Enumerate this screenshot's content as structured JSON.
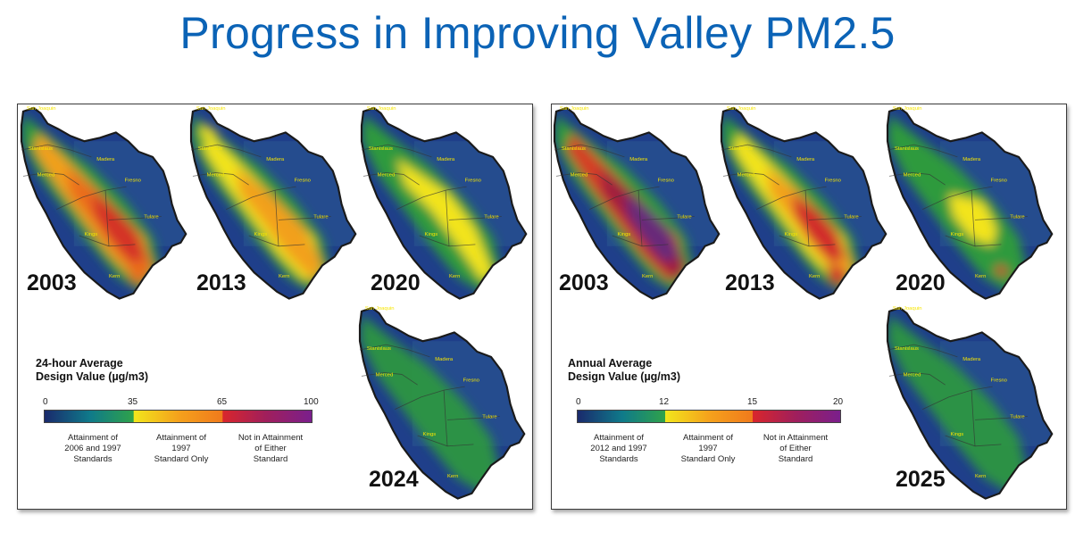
{
  "title": "Progress in Improving Valley PM2.5",
  "left_panel": {
    "years": [
      "2003",
      "2013",
      "2020",
      "2024"
    ],
    "legend": {
      "title_line1": "24-hour Average",
      "title_line2": "Design Value (µg/m3)",
      "ticks": [
        "0",
        "35",
        "65",
        "100"
      ],
      "categories": [
        [
          "Attainment of",
          "2006 and 1997",
          "Standards"
        ],
        [
          "Attainment of",
          "1997",
          "Standard Only"
        ],
        [
          "Not in Attainment",
          "of Either",
          "Standard"
        ]
      ]
    }
  },
  "right_panel": {
    "years": [
      "2003",
      "2013",
      "2020",
      "2025"
    ],
    "legend": {
      "title_line1": "Annual Average",
      "title_line2": "Design Value  (µg/m3)",
      "ticks": [
        "0",
        "12",
        "15",
        "20"
      ],
      "categories": [
        [
          "Attainment of",
          "2012 and 1997",
          "Standards"
        ],
        [
          "Attainment of",
          "1997",
          "Standard Only"
        ],
        [
          "Not in Attainment",
          "of Either",
          "Standard"
        ]
      ]
    }
  },
  "colors": {
    "title": "#0b63b6",
    "scale": [
      "#1a2a6c",
      "#0f7a8a",
      "#2fa24a",
      "#f2e61c",
      "#f08a1c",
      "#d9262c",
      "#7a1f8c"
    ]
  }
}
